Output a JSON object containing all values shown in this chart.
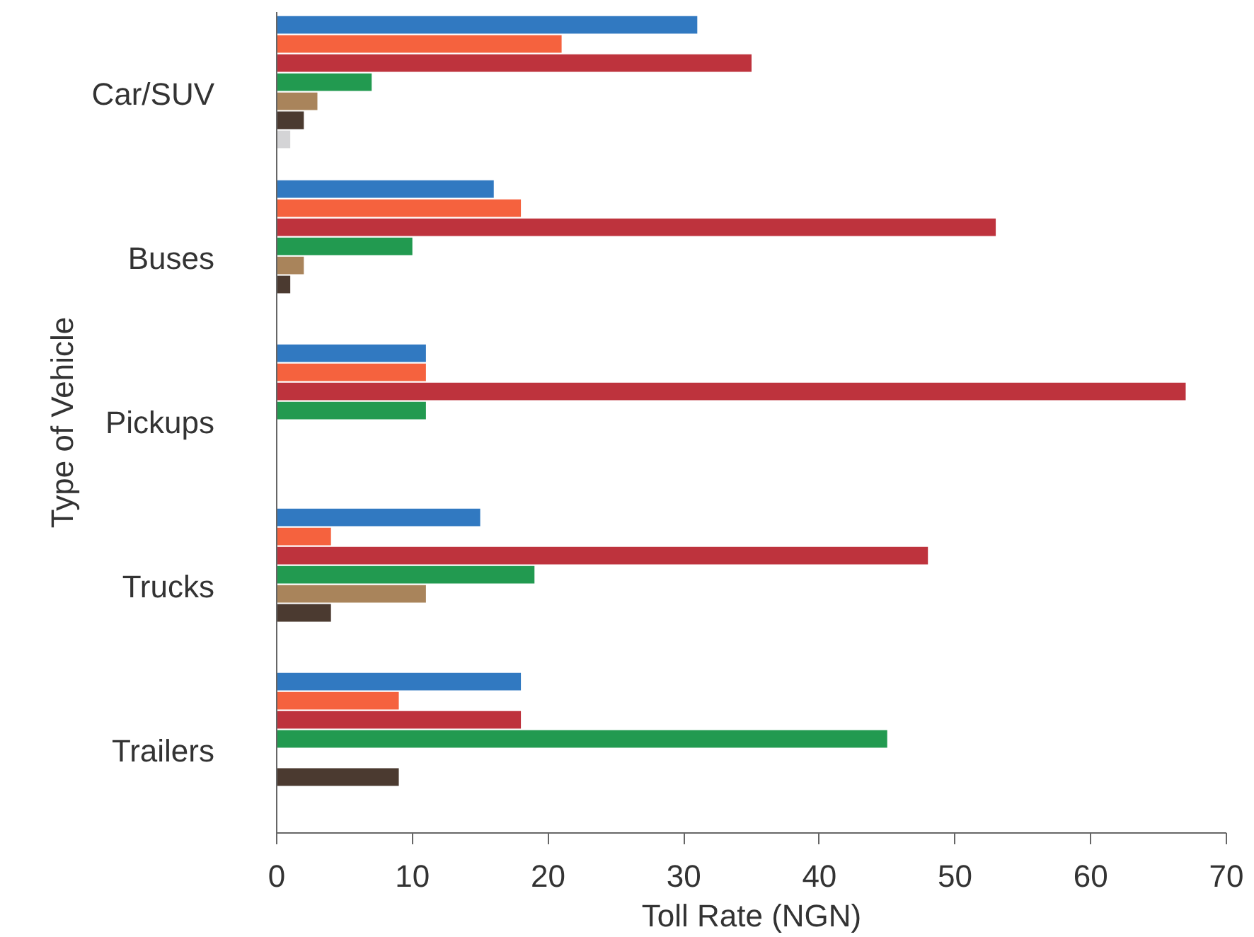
{
  "chart_data": {
    "type": "bar",
    "orientation": "horizontal",
    "xlabel": "Toll Rate (NGN)",
    "ylabel": "Type of Vehicle",
    "categories": [
      "Car/SUV",
      "Buses",
      "Pickups",
      "Trucks",
      "Trailers"
    ],
    "series": [
      {
        "color": "#3179c1",
        "values": [
          31,
          16,
          11,
          15,
          18
        ]
      },
      {
        "color": "#f5623e",
        "values": [
          21,
          18,
          11,
          4,
          9
        ]
      },
      {
        "color": "#be333d",
        "values": [
          35,
          53,
          67,
          48,
          18
        ]
      },
      {
        "color": "#229a50",
        "values": [
          7,
          10,
          11,
          19,
          45
        ]
      },
      {
        "color": "#a9845b",
        "values": [
          3,
          2,
          0,
          11,
          0
        ]
      },
      {
        "color": "#4b3a30",
        "values": [
          2,
          1,
          0,
          4,
          9
        ]
      },
      {
        "color": "#d4d4d6",
        "values": [
          1,
          0,
          0,
          0,
          0
        ]
      }
    ],
    "xlim": [
      0,
      70
    ],
    "xticks": [
      0,
      10,
      20,
      30,
      40,
      50,
      60,
      70
    ],
    "grid": false
  }
}
